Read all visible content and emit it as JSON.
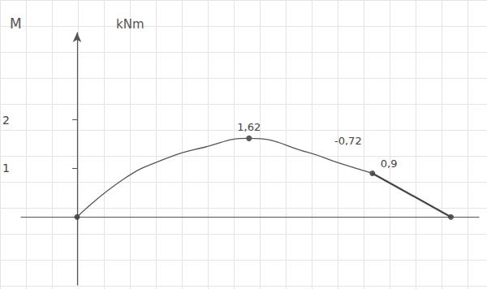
{
  "chart_data": {
    "type": "line",
    "y_label": "M",
    "y_unit": "kNm",
    "x": [
      0,
      0.49,
      0.92,
      1.35,
      1.84,
      2.47,
      2.82,
      3.16,
      4.0
    ],
    "series": [
      {
        "type": "line",
        "line_style": "curved",
        "color": "#555555",
        "values": [
          0,
          0.77,
          1.18,
          1.43,
          1.62,
          1.33,
          1.1,
          0.9,
          null
        ]
      },
      {
        "type": "line",
        "line_style": "bold",
        "color": "#444444",
        "values": [
          null,
          null,
          null,
          null,
          null,
          null,
          null,
          0.9,
          0
        ]
      },
      {
        "type": "scatter",
        "marker": "circle",
        "color": "#333333",
        "values": [
          0,
          null,
          null,
          null,
          1.62,
          null,
          null,
          0.9,
          0
        ]
      }
    ],
    "annotations": [
      {
        "text": "1,62",
        "x": 1.84,
        "y": 1.62
      },
      {
        "text": "-0,72",
        "x": 2.9,
        "y": 1.55
      },
      {
        "text": "0,9",
        "x": 3.16,
        "y": 0.9
      }
    ],
    "xlim": [
      -0.6,
      4.3
    ],
    "ylim": [
      -1.4,
      3.8
    ],
    "yticks": [
      1,
      2
    ],
    "tick_labels": "y"
  }
}
